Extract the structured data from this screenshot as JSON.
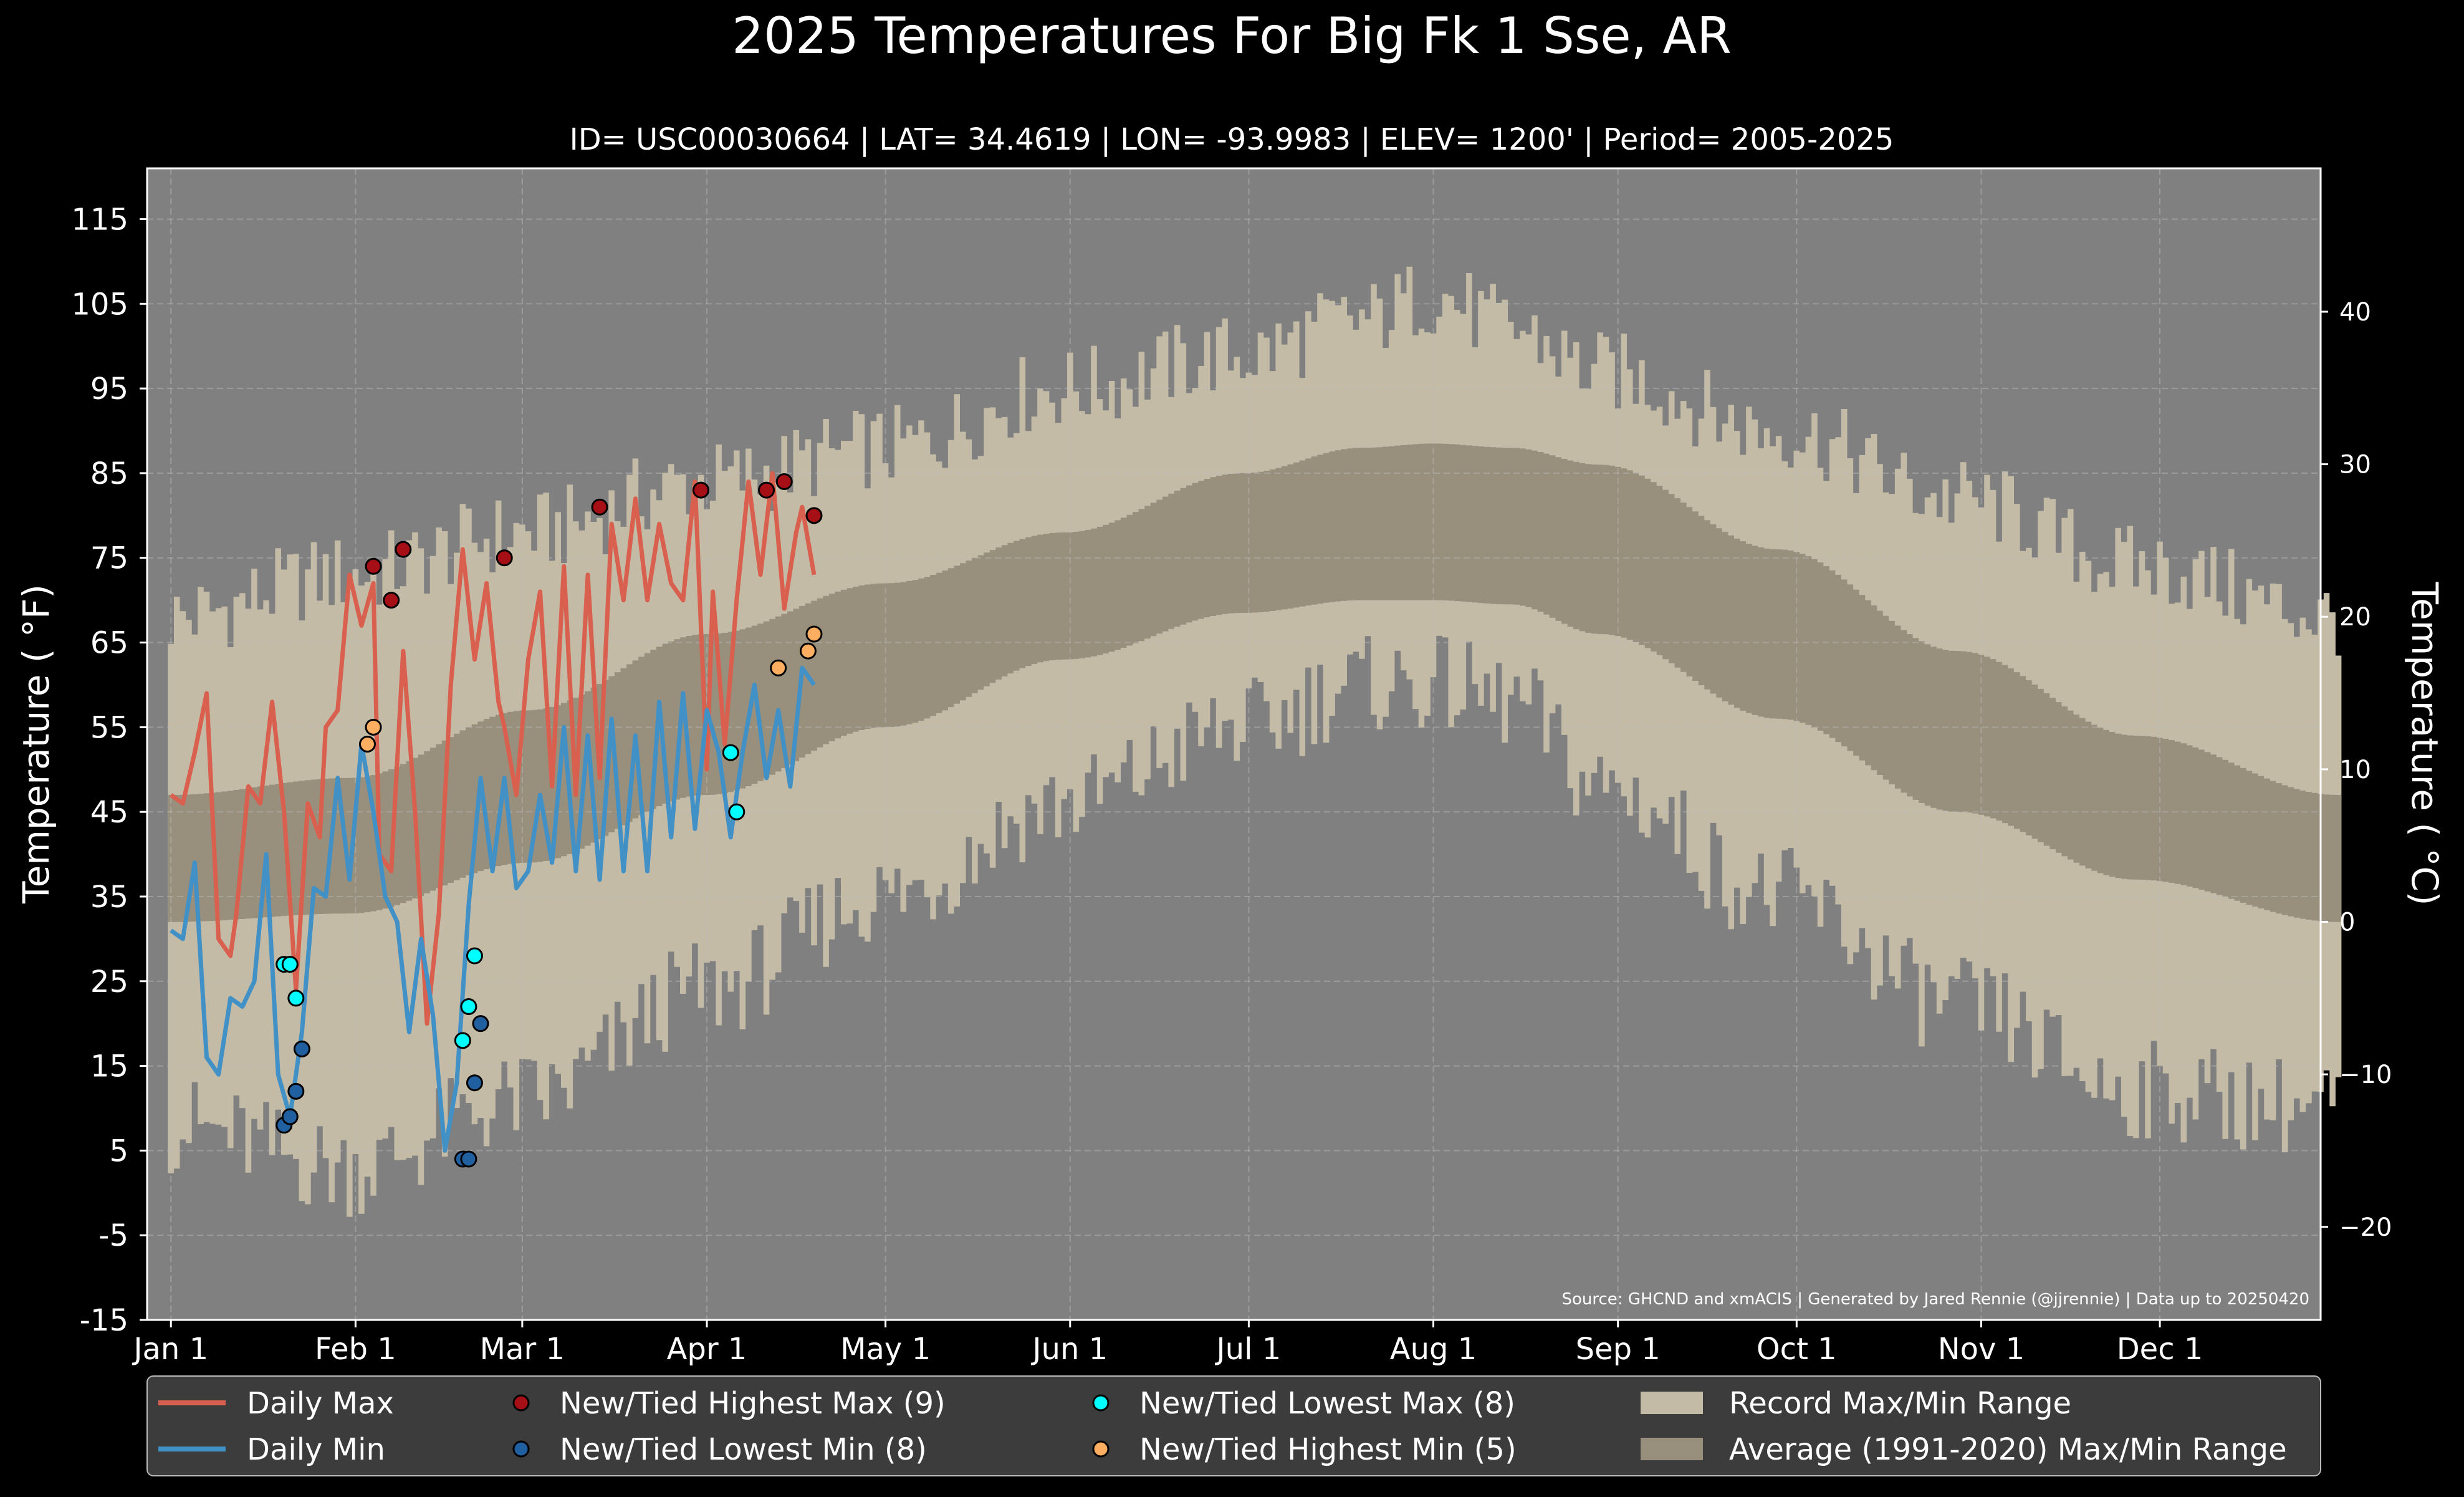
{
  "title": "2025 Temperatures For Big Fk 1 Sse, AR",
  "subtitle": "ID= USC00030664 | LAT= 34.4619 | LON= -93.9983 | ELEV= 1200' | Period= 2005-2025",
  "source_note": "Source: GHCND and xmACIS | Generated by Jared Rennie (@jjrennie) | Data up to 20250420",
  "colors": {
    "background": "#000000",
    "plot_bg": "#808080",
    "record_range": "#c4bba6",
    "normal_range": "#988f7d",
    "daily_max": "#d9604f",
    "daily_min": "#4190c6",
    "highest_max_marker": "#a50f15",
    "lowest_min_marker": "#2060a0",
    "lowest_max_marker": "#00ffff",
    "highest_min_marker": "#fdae61",
    "legend_bg": "#3c3c3c"
  },
  "legend": [
    {
      "label": "Daily Max",
      "kind": "line",
      "color": "#d9604f"
    },
    {
      "label": "Daily Min",
      "kind": "line",
      "color": "#4190c6"
    },
    {
      "label": "New/Tied Highest Max (9)",
      "kind": "marker",
      "color": "#a50f15"
    },
    {
      "label": "New/Tied Lowest Min (8)",
      "kind": "marker",
      "color": "#2060a0"
    },
    {
      "label": "New/Tied Lowest Max (8)",
      "kind": "marker",
      "color": "#00ffff"
    },
    {
      "label": "New/Tied Highest Min (5)",
      "kind": "marker",
      "color": "#fdae61"
    },
    {
      "label": "Record Max/Min Range",
      "kind": "patch",
      "color": "#c4bba6"
    },
    {
      "label": "Average (1991-2020) Max/Min Range",
      "kind": "patch",
      "color": "#988f7d"
    }
  ],
  "chart_data": {
    "type": "line",
    "ylabel": "Temperature ($^\\circ$F)",
    "ylabel2": "Temperature ($^\\circ$C)",
    "ylabel_display": "Temperature ( °F)",
    "ylabel2_display": "Temperature ( °C)",
    "ylim": [
      -15,
      121
    ],
    "ylim_c": [
      -26.1,
      49.4
    ],
    "y_ticks": [
      115,
      105,
      95,
      85,
      75,
      65,
      55,
      45,
      35,
      25,
      15,
      5,
      -5,
      -15
    ],
    "y_tick_labels": [
      "115",
      "105",
      "95",
      "85",
      "75",
      "65",
      "55",
      "45",
      "35",
      "25",
      "15",
      "5",
      "-5",
      "-15"
    ],
    "y2_ticks": [
      40,
      30,
      20,
      10,
      0,
      -10,
      -20
    ],
    "y2_tick_labels": [
      "40",
      "30",
      "20",
      "10",
      "0",
      "−10",
      "−20"
    ],
    "xlim": [
      -4,
      361
    ],
    "x_ticks": [
      0,
      31,
      59,
      90,
      120,
      151,
      181,
      212,
      243,
      273,
      304,
      334
    ],
    "x_tick_labels": [
      "Jan 1",
      "Feb 1",
      "Mar 1",
      "Apr 1",
      "May 1",
      "Jun 1",
      "Jul 1",
      "Aug 1",
      "Sep 1",
      "Oct 1",
      "Nov 1",
      "Dec 1"
    ],
    "grid": true,
    "normal_range": {
      "x": [
        0,
        30,
        60,
        90,
        120,
        150,
        180,
        200,
        212,
        225,
        240,
        270,
        300,
        330,
        364
      ],
      "high": [
        47,
        49,
        57,
        66,
        72,
        78,
        85,
        88,
        88.5,
        88,
        86,
        76,
        64,
        54,
        47
      ],
      "low": [
        32,
        33,
        39,
        47,
        55,
        63,
        68.5,
        70,
        70,
        69.5,
        66,
        56,
        45,
        37,
        32
      ]
    },
    "record_range": {
      "x": [
        0,
        30,
        60,
        90,
        120,
        150,
        180,
        200,
        212,
        225,
        240,
        270,
        300,
        330,
        364
      ],
      "high": [
        68,
        73,
        78,
        84,
        88,
        95,
        99,
        103,
        106,
        102,
        97,
        90,
        82,
        74,
        68
      ],
      "low": [
        8,
        3,
        11,
        24,
        35,
        46,
        55,
        60,
        60,
        58,
        48,
        35,
        22,
        12,
        10
      ]
    },
    "series": [
      {
        "name": "Daily Max",
        "x": [
          0,
          2,
          4,
          6,
          8,
          10,
          11,
          13,
          15,
          17,
          19,
          21,
          23,
          25,
          26,
          28,
          30,
          32,
          34,
          35,
          37,
          39,
          41,
          43,
          45,
          47,
          49,
          51,
          53,
          55,
          56,
          58,
          60,
          62,
          64,
          66,
          68,
          70,
          72,
          74,
          76,
          78,
          80,
          82,
          84,
          86,
          88,
          90,
          91,
          93,
          95,
          97,
          99,
          101,
          103,
          105,
          106,
          108
        ],
        "y": [
          47,
          46,
          52,
          59,
          30,
          28,
          33,
          48,
          46,
          58,
          45,
          24,
          46,
          42,
          55,
          57,
          73,
          67,
          72,
          40,
          38,
          64,
          45,
          20,
          33,
          60,
          76,
          63,
          72,
          58,
          55,
          47,
          63,
          71,
          48,
          74,
          47,
          73,
          49,
          79,
          70,
          82,
          70,
          79,
          72,
          70,
          84,
          50,
          71,
          53,
          70,
          84,
          73,
          85,
          69,
          78,
          81,
          73
        ]
      },
      {
        "name": "Daily Min",
        "x": [
          0,
          2,
          4,
          6,
          8,
          10,
          12,
          14,
          16,
          18,
          20,
          22,
          24,
          26,
          28,
          30,
          32,
          34,
          36,
          38,
          40,
          42,
          44,
          46,
          48,
          50,
          52,
          54,
          56,
          58,
          60,
          62,
          64,
          66,
          68,
          70,
          72,
          74,
          76,
          78,
          80,
          82,
          84,
          86,
          88,
          90,
          92,
          94,
          96,
          98,
          100,
          102,
          104,
          106,
          108
        ],
        "y": [
          31,
          30,
          39,
          16,
          14,
          23,
          22,
          25,
          40,
          14,
          9,
          19,
          36,
          35,
          49,
          37,
          53,
          45,
          35,
          32,
          19,
          30,
          21,
          5,
          13,
          34,
          49,
          38,
          49,
          36,
          38,
          47,
          39,
          55,
          38,
          54,
          37,
          56,
          38,
          54,
          38,
          58,
          42,
          59,
          43,
          57,
          52,
          42,
          52,
          60,
          49,
          57,
          48,
          62,
          60
        ]
      }
    ],
    "markers": [
      {
        "name": "New/Tied Highest Max (9)",
        "x": [
          34,
          37,
          39,
          56,
          72,
          89,
          100,
          103,
          108
        ],
        "y": [
          74,
          70,
          76,
          75,
          81,
          83,
          83,
          84,
          80
        ]
      },
      {
        "name": "New/Tied Lowest Min (8)",
        "x": [
          19,
          20,
          21,
          22,
          49,
          50,
          51,
          52
        ],
        "y": [
          8,
          9,
          12,
          17,
          4,
          4,
          13,
          20
        ]
      },
      {
        "name": "New/Tied Lowest Max (8)",
        "x": [
          19,
          20,
          21,
          49,
          50,
          51,
          94,
          95
        ],
        "y": [
          27,
          27,
          23,
          18,
          22,
          28,
          52,
          45
        ]
      },
      {
        "name": "New/Tied Highest Min (5)",
        "x": [
          33,
          34,
          102,
          107,
          108
        ],
        "y": [
          53,
          55,
          62,
          64,
          66
        ]
      }
    ]
  }
}
